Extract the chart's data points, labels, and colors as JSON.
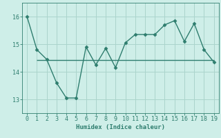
{
  "x": [
    0,
    1,
    2,
    3,
    4,
    5,
    6,
    7,
    8,
    9,
    10,
    11,
    12,
    13,
    14,
    15,
    16,
    17,
    18,
    19
  ],
  "y": [
    16.0,
    14.8,
    14.45,
    13.6,
    13.05,
    13.05,
    14.9,
    14.25,
    14.85,
    14.15,
    15.05,
    15.35,
    15.35,
    15.35,
    15.7,
    15.85,
    15.1,
    15.75,
    14.8,
    14.35
  ],
  "line_color": "#2e7d6e",
  "marker": "D",
  "marker_size": 2.5,
  "bg_color": "#ceeee8",
  "grid_color": "#aad4cc",
  "xlabel": "Humidex (Indice chaleur)",
  "xlim": [
    -0.5,
    19.5
  ],
  "ylim": [
    12.5,
    16.5
  ],
  "yticks": [
    13,
    14,
    15,
    16
  ],
  "xticks": [
    0,
    1,
    2,
    3,
    4,
    5,
    6,
    7,
    8,
    9,
    10,
    11,
    12,
    13,
    14,
    15,
    16,
    17,
    18,
    19
  ],
  "hline_y": 14.43,
  "hline_x_start": 1.0,
  "hline_x_end": 19.0,
  "label_fontsize": 6.5,
  "tick_fontsize": 6,
  "line_width": 1.0
}
